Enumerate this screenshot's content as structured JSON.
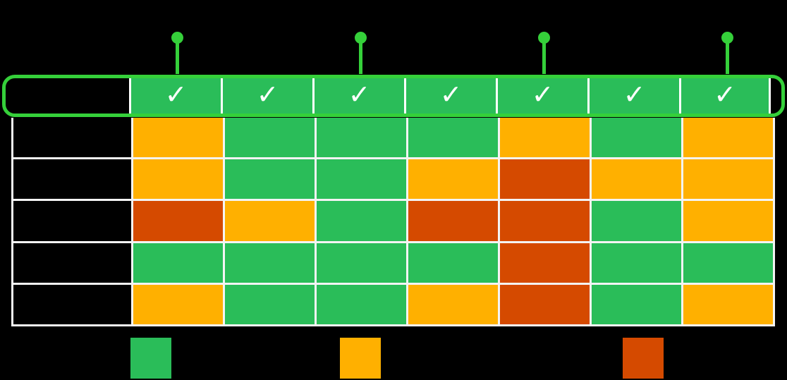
{
  "colors": {
    "background": "#000000",
    "outline_green": "#35D03A",
    "marker_green": "#35D03A",
    "cell_green": "#2ABD59",
    "warning_orange": "#FFB000",
    "critical_red": "#D54A00",
    "grid_white": "#F4F4F4",
    "check_white": "#FFFFFF"
  },
  "header": {
    "check_symbol": "✓",
    "column_count": 7,
    "marker_columns": [
      1,
      3,
      5,
      7
    ]
  },
  "chart_data": {
    "type": "heatmap",
    "title": "",
    "columns": [
      "✓",
      "✓",
      "✓",
      "✓",
      "✓",
      "✓",
      "✓"
    ],
    "row_labels": [
      "",
      "",
      "",
      "",
      ""
    ],
    "rows": [
      [
        "warning",
        "good",
        "good",
        "good",
        "warning",
        "good",
        "warning"
      ],
      [
        "warning",
        "good",
        "good",
        "warning",
        "critical",
        "warning",
        "warning"
      ],
      [
        "critical",
        "warning",
        "good",
        "critical",
        "critical",
        "good",
        "warning"
      ],
      [
        "good",
        "good",
        "good",
        "good",
        "critical",
        "good",
        "good"
      ],
      [
        "warning",
        "good",
        "good",
        "warning",
        "critical",
        "good",
        "warning"
      ]
    ],
    "status_colors": {
      "good": "#2ABD59",
      "warning": "#FFB000",
      "critical": "#D54A00"
    },
    "legend": [
      {
        "status": "good",
        "color": "#2ABD59",
        "label": ""
      },
      {
        "status": "warning",
        "color": "#FFB000",
        "label": ""
      },
      {
        "status": "critical",
        "color": "#D54A00",
        "label": ""
      }
    ],
    "legend_position": "bottom",
    "grid": true
  }
}
